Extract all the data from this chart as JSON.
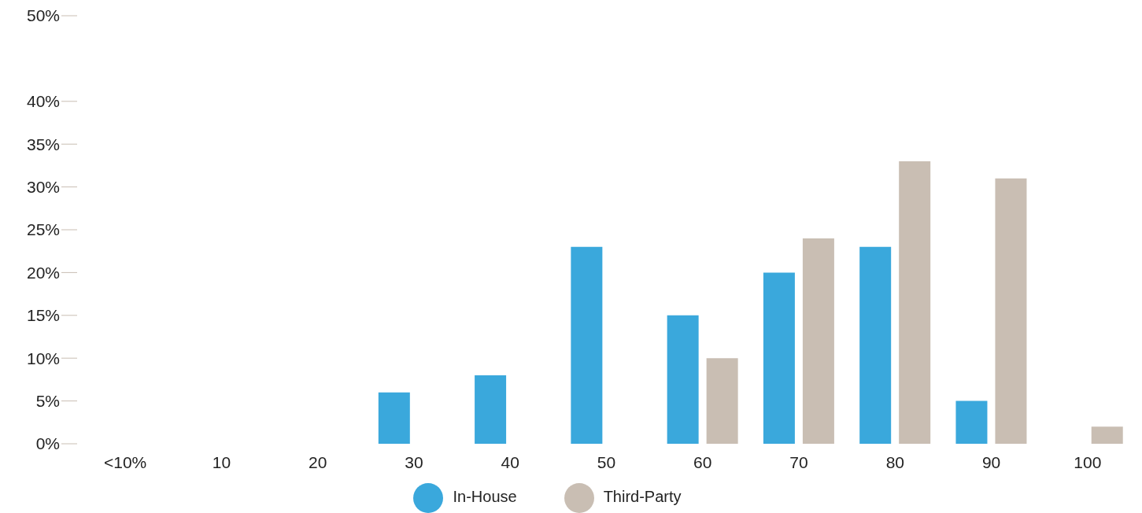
{
  "chart_data": {
    "type": "bar",
    "categories": [
      "<10%",
      "10",
      "20",
      "30",
      "40",
      "50",
      "60",
      "70",
      "80",
      "90",
      "100"
    ],
    "series": [
      {
        "name": "In-House",
        "color": "#3aa8dc",
        "values": [
          null,
          null,
          null,
          6,
          8,
          23,
          15,
          20,
          23,
          5,
          null
        ]
      },
      {
        "name": "Third-Party",
        "color": "#c9beb3",
        "values": [
          null,
          null,
          null,
          null,
          null,
          null,
          10,
          24,
          33,
          31,
          2
        ]
      }
    ],
    "ylim": [
      0,
      50
    ],
    "yticks": [
      {
        "value": 0,
        "label": "0%"
      },
      {
        "value": 5,
        "label": "5%"
      },
      {
        "value": 10,
        "label": "10%"
      },
      {
        "value": 15,
        "label": "15%"
      },
      {
        "value": 20,
        "label": "20%"
      },
      {
        "value": 25,
        "label": "25%"
      },
      {
        "value": 30,
        "label": "30%"
      },
      {
        "value": 35,
        "label": "35%"
      },
      {
        "value": 40,
        "label": "40%"
      },
      {
        "value": 50,
        "label": "50%"
      }
    ],
    "grid": false,
    "legend": "bottom"
  }
}
